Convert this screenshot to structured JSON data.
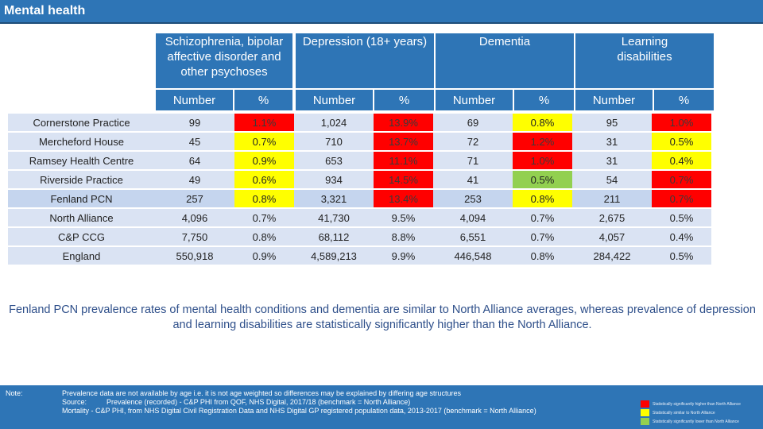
{
  "title": "Mental health",
  "table": {
    "groups": [
      "Schizophrenia, bipolar affective disorder and other psychoses",
      "Depression (18+ years)",
      "Dementia",
      "Learning disabilities"
    ],
    "subheaders": [
      "Number",
      "%",
      "Number",
      "%",
      "Number",
      "%",
      "Number",
      "%"
    ],
    "rows": [
      {
        "name": "Cornerstone Practice",
        "vals": [
          "99",
          "1.1%",
          "1,024",
          "13.9%",
          "69",
          "0.8%",
          "95",
          "1.0%"
        ]
      },
      {
        "name": "Mercheford House",
        "vals": [
          "45",
          "0.7%",
          "710",
          "13.7%",
          "72",
          "1.2%",
          "31",
          "0.5%"
        ]
      },
      {
        "name": "Ramsey Health Centre",
        "vals": [
          "64",
          "0.9%",
          "653",
          "11.1%",
          "71",
          "1.0%",
          "31",
          "0.4%"
        ]
      },
      {
        "name": "Riverside Practice",
        "vals": [
          "49",
          "0.6%",
          "934",
          "14.5%",
          "41",
          "0.5%",
          "54",
          "0.7%"
        ]
      },
      {
        "name": "Fenland PCN",
        "vals": [
          "257",
          "0.8%",
          "3,321",
          "13.4%",
          "253",
          "0.8%",
          "211",
          "0.7%"
        ]
      },
      {
        "name": "North Alliance",
        "vals": [
          "4,096",
          "0.7%",
          "41,730",
          "9.5%",
          "4,094",
          "0.7%",
          "2,675",
          "0.5%"
        ]
      },
      {
        "name": "C&P CCG",
        "vals": [
          "7,750",
          "0.8%",
          "68,112",
          "8.8%",
          "6,551",
          "0.7%",
          "4,057",
          "0.4%"
        ]
      },
      {
        "name": "England",
        "vals": [
          "550,918",
          "0.9%",
          "4,589,213",
          "9.9%",
          "446,548",
          "0.8%",
          "284,422",
          "0.5%"
        ]
      }
    ]
  },
  "summary": "Fenland PCN prevalence rates of mental health conditions and dementia are similar to North Alliance averages, whereas prevalence of depression and learning disabilities are statistically significantly higher than the North Alliance.",
  "footer": {
    "note_label": "Note:",
    "lines": [
      "Prevalence data are not available by age i.e. it is not age weighted so differences may be explained by differing age structures",
      "Source:          Prevalence (recorded) - C&P PHI from QOF, NHS Digital, 2017/18 (benchmark = North Alliance)",
      "Mortality - C&P PHI, from NHS Digital Civil Registration Data and NHS Digital GP registered population data, 2013-2017 (benchmark = North Alliance)"
    ],
    "legend": [
      {
        "label": "Statistically significantly higher than North Alliance",
        "color": "#ff0000"
      },
      {
        "label": "Statistically similar to North Alliance",
        "color": "#ffff00"
      },
      {
        "label": "Statistically significantly lower than North Alliance",
        "color": "#92d050"
      }
    ]
  }
}
